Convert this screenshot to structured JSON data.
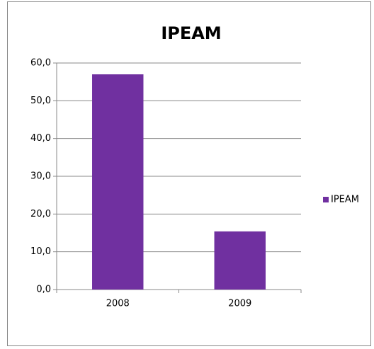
{
  "chart_data": {
    "type": "bar",
    "title": "IPEAM",
    "categories": [
      "2008",
      "2009"
    ],
    "series": [
      {
        "name": "IPEAM",
        "color": "#7030a0",
        "values": [
          57.0,
          15.4
        ]
      }
    ],
    "ylim": [
      0,
      60
    ],
    "yticks": [
      {
        "value": 0,
        "label": "0,0"
      },
      {
        "value": 10,
        "label": "10,0"
      },
      {
        "value": 20,
        "label": "20,0"
      },
      {
        "value": 30,
        "label": "30,0"
      },
      {
        "value": 40,
        "label": "40,0"
      },
      {
        "value": 50,
        "label": "50,0"
      },
      {
        "value": 60,
        "label": "60,0"
      }
    ],
    "grid": true,
    "legend": "right"
  }
}
